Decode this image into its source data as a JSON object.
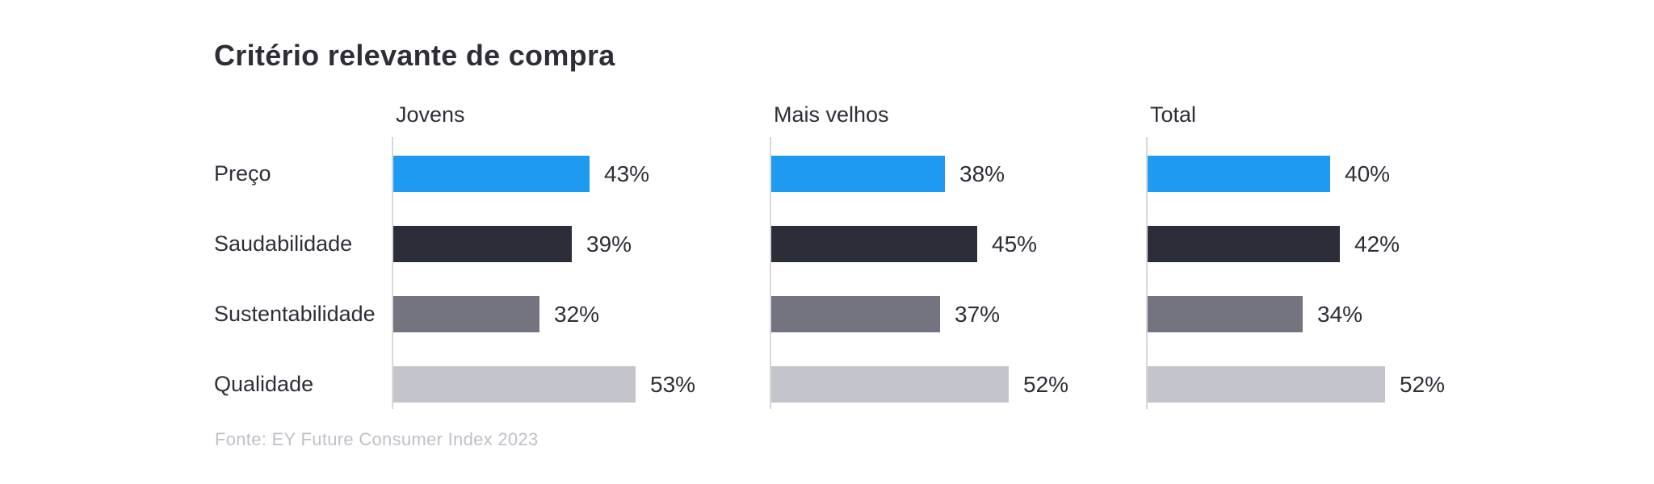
{
  "title": "Critério relevante de compra",
  "source_note": "Fonte: EY Future Consumer Index 2023",
  "chart_data": {
    "type": "bar",
    "orientation": "horizontal",
    "title": "Critério relevante de compra",
    "source": "Fonte: EY Future Consumer Index 2023",
    "categories": [
      "Preço",
      "Saudabilidade",
      "Sustentabilidade",
      "Qualidade"
    ],
    "series": [
      {
        "name": "Jovens",
        "values": [
          43,
          39,
          32,
          53
        ]
      },
      {
        "name": "Mais velhos",
        "values": [
          38,
          45,
          37,
          52
        ]
      },
      {
        "name": "Total",
        "values": [
          40,
          42,
          34,
          52
        ]
      }
    ],
    "value_suffix": "%",
    "value_labels": true,
    "xlim": [
      0,
      56
    ],
    "grid": false,
    "legend": "none",
    "category_colors": {
      "Preço": "#1E9BF0",
      "Saudabilidade": "#2B2E38",
      "Sustentabilidade": "#747480",
      "Qualidade": "#C4C4CC"
    }
  },
  "style": {
    "text_color": "#2E2E38",
    "axis_line_color": "#D8D8DA",
    "source_text_color": "#C0C0C8",
    "background_color": "#FFFFFF"
  }
}
